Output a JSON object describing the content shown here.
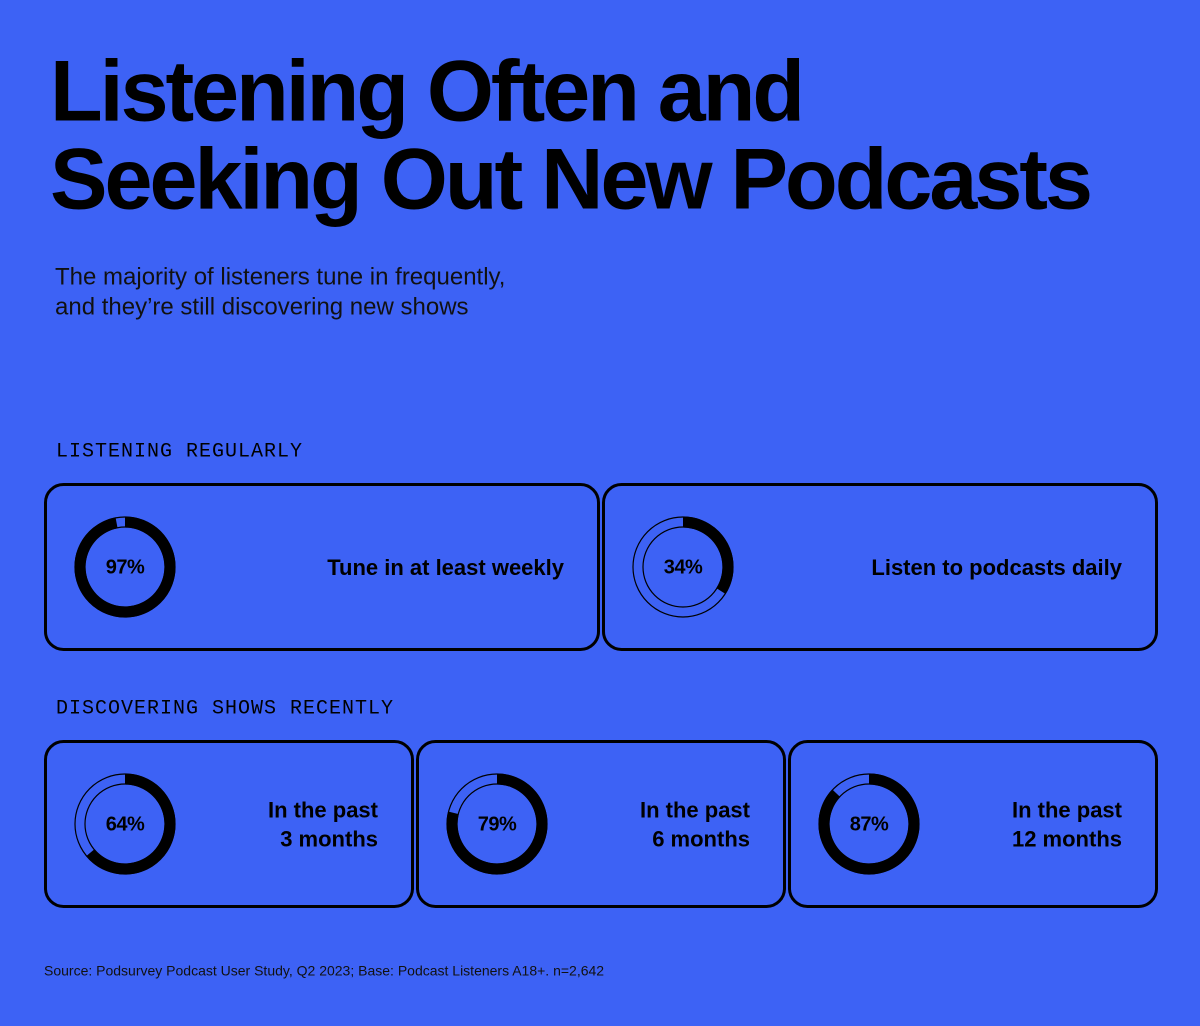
{
  "title": [
    "Listening Often and",
    "Seeking Out New Podcasts"
  ],
  "subtitle": [
    "The majority of listeners tune in frequently,",
    "and they’re still discovering new shows"
  ],
  "sections": [
    {
      "heading": "LISTENING REGULARLY",
      "cards": [
        {
          "value": 97,
          "value_label": "97%",
          "label": [
            "Tune in at least weekly"
          ]
        },
        {
          "value": 34,
          "value_label": "34%",
          "label": [
            "Listen to podcasts daily"
          ]
        }
      ]
    },
    {
      "heading": "DISCOVERING SHOWS RECENTLY",
      "cards": [
        {
          "value": 64,
          "value_label": "64%",
          "label": [
            "In the past",
            "3 months"
          ]
        },
        {
          "value": 79,
          "value_label": "79%",
          "label": [
            "In the past",
            "6 months"
          ]
        },
        {
          "value": 87,
          "value_label": "87%",
          "label": [
            "In the past",
            "12 months"
          ]
        }
      ]
    }
  ],
  "source": "Source: Podsurvey Podcast User Study, Q2 2023; Base: Podcast Listeners A18+. n=2,642"
}
